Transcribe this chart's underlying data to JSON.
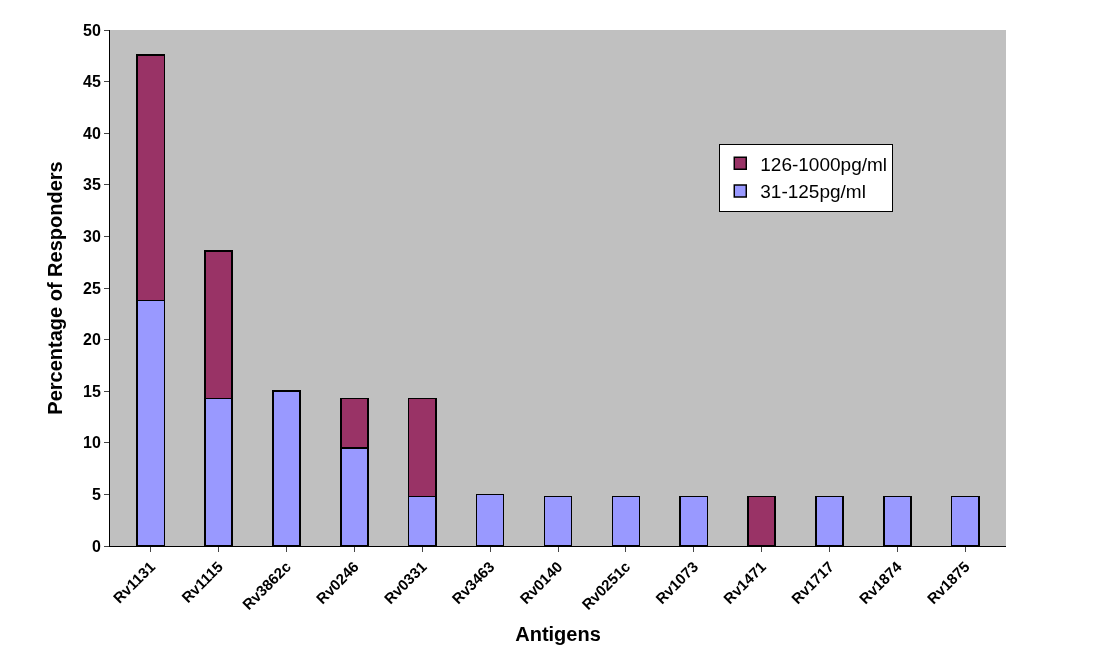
{
  "chart_data": {
    "type": "bar",
    "stacked": true,
    "xlabel": "Antigens",
    "ylabel": "Percentage of Responders",
    "categories": [
      "Rv1131",
      "Rv1115",
      "Rv3862c",
      "Rv0246",
      "Rv0331",
      "Rv3463",
      "Rv0140",
      "Rv0251c",
      "Rv1073",
      "Rv1471",
      "Rv1717",
      "Rv1874",
      "Rv1875"
    ],
    "series": [
      {
        "name": "31-125pg/ml",
        "color": "#9999ff",
        "values": [
          23.8,
          14.3,
          15.0,
          9.5,
          4.8,
          5.0,
          4.8,
          4.8,
          4.8,
          null,
          4.8,
          4.8,
          4.8
        ]
      },
      {
        "name": "126-1000pg/ml",
        "color": "#993366",
        "values": [
          23.8,
          14.3,
          null,
          4.8,
          9.5,
          null,
          null,
          null,
          null,
          4.8,
          null,
          null,
          null
        ]
      }
    ],
    "ylim": [
      0,
      50
    ],
    "yticks": [
      0,
      5,
      10,
      15,
      20,
      25,
      30,
      35,
      40,
      45,
      50
    ],
    "grid": false,
    "legend": "right"
  }
}
